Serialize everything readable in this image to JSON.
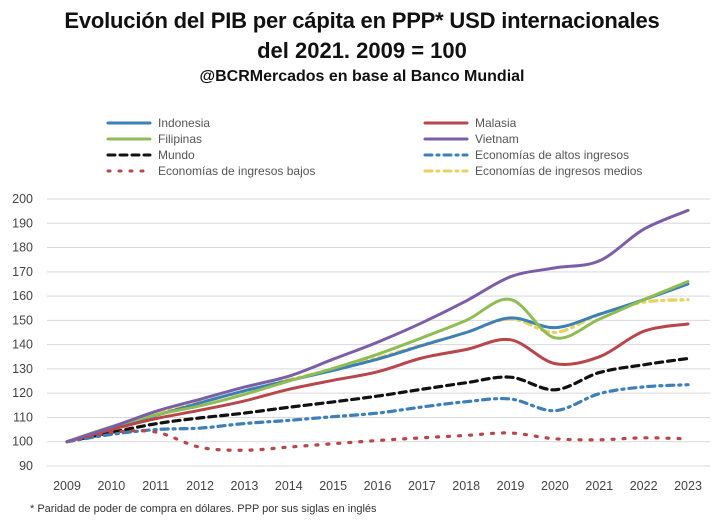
{
  "header": {
    "title_line1": "Evolución del PIB per cápita en PPP* USD internacionales",
    "title_line2": "del 2021. 2009 = 100",
    "source": "@BCRMercados en base al Banco Mundial"
  },
  "footnote": "* Paridad de poder de compra en dólares. PPP por sus siglas en inglés",
  "chart_data": {
    "type": "line",
    "x": [
      "2009",
      "2010",
      "2011",
      "2012",
      "2013",
      "2014",
      "2015",
      "2016",
      "2017",
      "2018",
      "2019",
      "2020",
      "2021",
      "2022",
      "2023"
    ],
    "ylim": [
      90,
      200
    ],
    "yticks": [
      "90",
      "100",
      "110",
      "120",
      "130",
      "140",
      "150",
      "160",
      "170",
      "180",
      "190",
      "200"
    ],
    "grid": "horizontal",
    "legend_position": "top",
    "series": [
      {
        "name": "Indonesia",
        "color": "#3d7fb8",
        "dash": "solid",
        "values": [
          100,
          105.5,
          110.8,
          116,
          121,
          125.2,
          129.4,
          134,
          139.6,
          145,
          151,
          147,
          152.5,
          158.5,
          165
        ]
      },
      {
        "name": "Malasia",
        "color": "#b8464a",
        "dash": "solid",
        "values": [
          100,
          105,
          109.5,
          113,
          116.8,
          121.6,
          125.3,
          128.8,
          134.5,
          138,
          142,
          132.2,
          135,
          145.5,
          148.5
        ]
      },
      {
        "name": "Filipinas",
        "color": "#8ebd56",
        "dash": "solid",
        "values": [
          100,
          106.2,
          111,
          114.8,
          119.5,
          125,
          130.2,
          136,
          142.8,
          150,
          158.6,
          142.8,
          150.5,
          158.5,
          166
        ]
      },
      {
        "name": "Vietnam",
        "color": "#7b5ea7",
        "dash": "solid",
        "values": [
          100,
          106,
          112.5,
          117.5,
          122.5,
          127,
          134,
          141,
          149,
          158,
          168,
          171.6,
          174.5,
          187.5,
          195.3
        ]
      },
      {
        "name": "Mundo",
        "color": "#111111",
        "dash": "dash",
        "values": [
          100,
          103.8,
          107.4,
          109.8,
          111.8,
          114.2,
          116.4,
          118.8,
          121.6,
          124.3,
          126.6,
          121.4,
          128.5,
          131.7,
          134.3
        ]
      },
      {
        "name": "Economías de altos ingresos",
        "color": "#3d7fb8",
        "dash": "dashdot",
        "values": [
          100,
          103,
          105,
          105.6,
          107.5,
          108.8,
          110.3,
          111.8,
          114.3,
          116.5,
          117.6,
          112.8,
          119.8,
          122.6,
          123.5
        ]
      },
      {
        "name": "Economías de ingresos bajos",
        "color": "#b8464a",
        "dash": "dot",
        "values": [
          100,
          103.8,
          104,
          97.7,
          96.5,
          97.8,
          99.2,
          100.5,
          101.6,
          102.6,
          103.6,
          101.2,
          100.8,
          101.6,
          101.2
        ]
      },
      {
        "name": "Economías de ingresos medios",
        "color": "#e6d35e",
        "dash": "dashdot",
        "values": [
          100,
          106,
          111.5,
          116.2,
          120.8,
          125.5,
          129.8,
          134.5,
          139.8,
          145,
          150.6,
          145,
          152.5,
          157.5,
          158.5
        ]
      }
    ]
  }
}
